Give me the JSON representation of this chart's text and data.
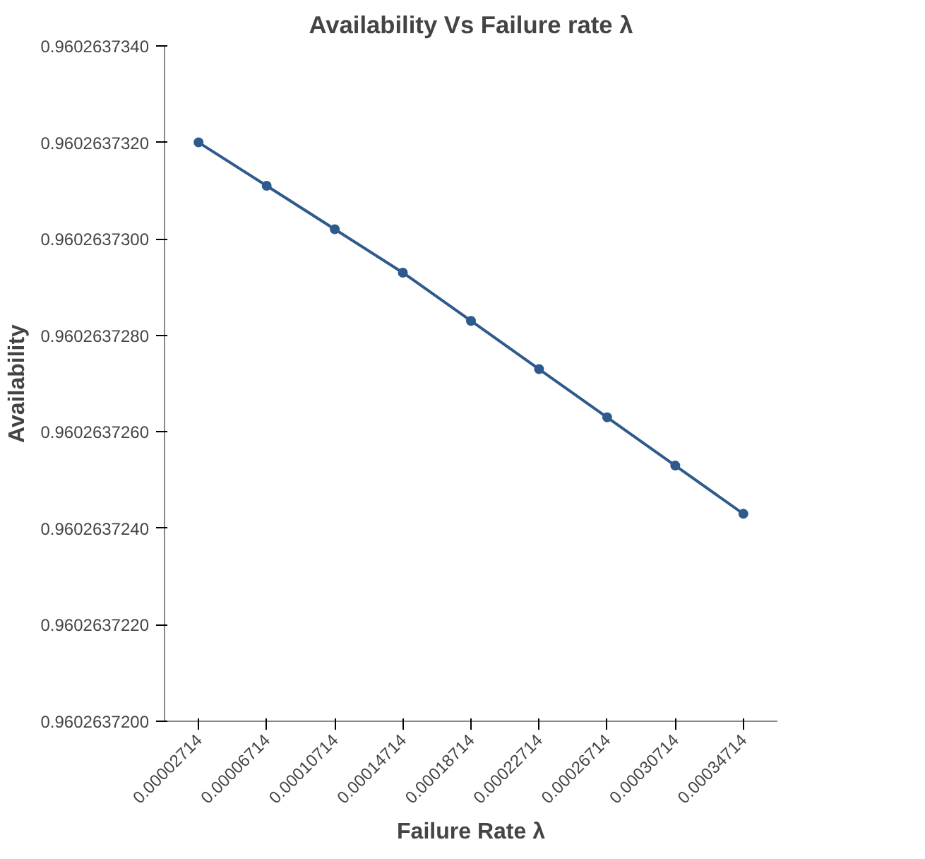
{
  "chart_data": {
    "type": "line",
    "title": "Availability Vs Failure rate λ",
    "xlabel": "Failure Rate λ",
    "ylabel": "Availability",
    "categories": [
      "0.00002714",
      "0.00006714",
      "0.00010714",
      "0.00014714",
      "0.00018714",
      "0.00022714",
      "0.00026714",
      "0.00030714",
      "0.00034714"
    ],
    "series": [
      {
        "color": "#2e5a8c",
        "values": [
          0.960263732,
          0.9602637311,
          0.9602637302,
          0.9602637293,
          0.9602637283,
          0.9602637273,
          0.9602637263,
          0.9602637253,
          0.9602637243
        ]
      }
    ],
    "ylim": [
      0.96026372,
      0.960263734
    ],
    "yticks": [
      {
        "value": 0.96026372,
        "label": "0.9602637200"
      },
      {
        "value": 0.960263722,
        "label": "0.9602637220"
      },
      {
        "value": 0.960263724,
        "label": "0.9602637240"
      },
      {
        "value": 0.960263726,
        "label": "0.9602637260"
      },
      {
        "value": 0.960263728,
        "label": "0.9602637280"
      },
      {
        "value": 0.96026373,
        "label": "0.9602637300"
      },
      {
        "value": 0.960263732,
        "label": "0.9602637320"
      },
      {
        "value": 0.960263734,
        "label": "0.9602637340"
      }
    ],
    "marker": "circle",
    "grid": false
  }
}
